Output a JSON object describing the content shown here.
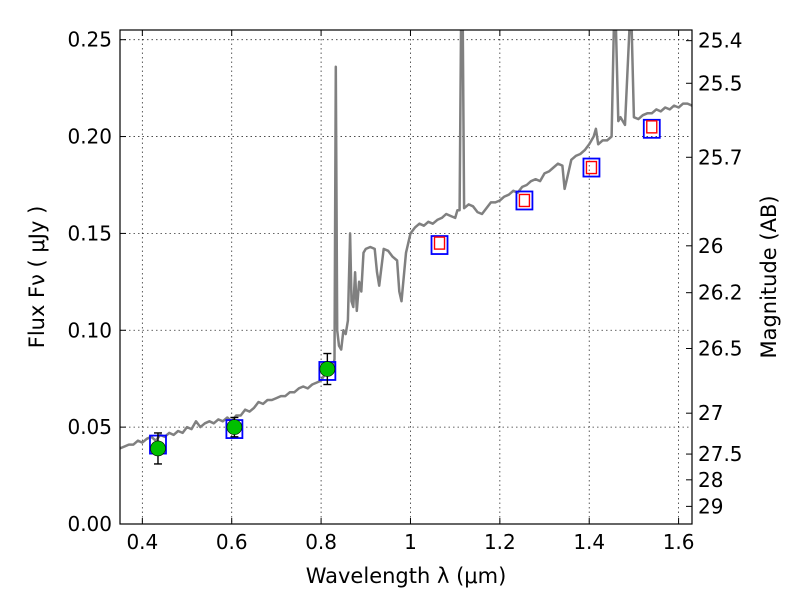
{
  "chart_data": {
    "type": "line",
    "title": "",
    "xlabel": "Wavelength  λ (μm)",
    "ylabel": "Flux  Fν  ( μJy )",
    "ylabel2": "Magnitude (AB)",
    "xlim": [
      0.35,
      1.63
    ],
    "ylim": [
      0.0,
      0.255
    ],
    "grid": true,
    "x_ticks": [
      0.4,
      0.6,
      0.8,
      1.0,
      1.2,
      1.4,
      1.6
    ],
    "x_tick_labels": [
      "0.4",
      "0.6",
      "0.8",
      "1",
      "1.2",
      "1.4",
      "1.6"
    ],
    "y_ticks": [
      0.0,
      0.05,
      0.1,
      0.15,
      0.2,
      0.25
    ],
    "y_tick_labels": [
      "0.00",
      "0.05",
      "0.10",
      "0.15",
      "0.20",
      "0.25"
    ],
    "mag_ticks": [
      {
        "label": "25.4",
        "flux": 0.2495
      },
      {
        "label": "25.5",
        "flux": 0.2275
      },
      {
        "label": "25.7",
        "flux": 0.1893
      },
      {
        "label": "26",
        "flux": 0.1436
      },
      {
        "label": "26.2",
        "flux": 0.1194
      },
      {
        "label": "26.5",
        "flux": 0.0906
      },
      {
        "label": "27",
        "flux": 0.0572
      },
      {
        "label": "27.5",
        "flux": 0.0361
      },
      {
        "label": "28",
        "flux": 0.0228
      },
      {
        "label": "29",
        "flux": 0.0091
      }
    ],
    "series": [
      {
        "kind": "spectrum",
        "color": "#808080",
        "points": [
          [
            0.35,
            0.039
          ],
          [
            0.36,
            0.04
          ],
          [
            0.37,
            0.041
          ],
          [
            0.38,
            0.041
          ],
          [
            0.39,
            0.043
          ],
          [
            0.4,
            0.042
          ],
          [
            0.41,
            0.044
          ],
          [
            0.42,
            0.045
          ],
          [
            0.43,
            0.043
          ],
          [
            0.44,
            0.046
          ],
          [
            0.45,
            0.045
          ],
          [
            0.46,
            0.047
          ],
          [
            0.47,
            0.046
          ],
          [
            0.48,
            0.048
          ],
          [
            0.49,
            0.047
          ],
          [
            0.5,
            0.05
          ],
          [
            0.51,
            0.049
          ],
          [
            0.52,
            0.053
          ],
          [
            0.53,
            0.05
          ],
          [
            0.54,
            0.052
          ],
          [
            0.55,
            0.053
          ],
          [
            0.56,
            0.052
          ],
          [
            0.57,
            0.054
          ],
          [
            0.58,
            0.053
          ],
          [
            0.59,
            0.055
          ],
          [
            0.6,
            0.053
          ],
          [
            0.61,
            0.056
          ],
          [
            0.62,
            0.056
          ],
          [
            0.63,
            0.059
          ],
          [
            0.64,
            0.058
          ],
          [
            0.65,
            0.06
          ],
          [
            0.66,
            0.063
          ],
          [
            0.67,
            0.062
          ],
          [
            0.68,
            0.064
          ],
          [
            0.69,
            0.064
          ],
          [
            0.7,
            0.065
          ],
          [
            0.71,
            0.066
          ],
          [
            0.72,
            0.066
          ],
          [
            0.73,
            0.068
          ],
          [
            0.74,
            0.068
          ],
          [
            0.75,
            0.07
          ],
          [
            0.76,
            0.071
          ],
          [
            0.77,
            0.07
          ],
          [
            0.78,
            0.072
          ],
          [
            0.79,
            0.073
          ],
          [
            0.8,
            0.074
          ],
          [
            0.81,
            0.078
          ],
          [
            0.82,
            0.082
          ],
          [
            0.825,
            0.08
          ],
          [
            0.83,
            0.085
          ],
          [
            0.833,
            0.236
          ],
          [
            0.836,
            0.1
          ],
          [
            0.84,
            0.092
          ],
          [
            0.845,
            0.09
          ],
          [
            0.85,
            0.1
          ],
          [
            0.855,
            0.098
          ],
          [
            0.86,
            0.105
          ],
          [
            0.865,
            0.15
          ],
          [
            0.868,
            0.115
          ],
          [
            0.872,
            0.112
          ],
          [
            0.876,
            0.13
          ],
          [
            0.88,
            0.11
          ],
          [
            0.885,
            0.125
          ],
          [
            0.89,
            0.12
          ],
          [
            0.895,
            0.14
          ],
          [
            0.9,
            0.142
          ],
          [
            0.91,
            0.143
          ],
          [
            0.92,
            0.142
          ],
          [
            0.925,
            0.13
          ],
          [
            0.93,
            0.123
          ],
          [
            0.94,
            0.142
          ],
          [
            0.95,
            0.141
          ],
          [
            0.96,
            0.138
          ],
          [
            0.97,
            0.136
          ],
          [
            0.975,
            0.12
          ],
          [
            0.98,
            0.115
          ],
          [
            0.99,
            0.14
          ],
          [
            1.0,
            0.15
          ],
          [
            1.01,
            0.153
          ],
          [
            1.02,
            0.155
          ],
          [
            1.03,
            0.154
          ],
          [
            1.04,
            0.156
          ],
          [
            1.05,
            0.155
          ],
          [
            1.06,
            0.157
          ],
          [
            1.07,
            0.158
          ],
          [
            1.08,
            0.16
          ],
          [
            1.09,
            0.159
          ],
          [
            1.1,
            0.158
          ],
          [
            1.105,
            0.162
          ],
          [
            1.11,
            0.162
          ],
          [
            1.113,
            0.255
          ],
          [
            1.117,
            0.255
          ],
          [
            1.12,
            0.163
          ],
          [
            1.13,
            0.165
          ],
          [
            1.14,
            0.164
          ],
          [
            1.15,
            0.161
          ],
          [
            1.16,
            0.16
          ],
          [
            1.17,
            0.163
          ],
          [
            1.18,
            0.166
          ],
          [
            1.19,
            0.166
          ],
          [
            1.2,
            0.167
          ],
          [
            1.21,
            0.169
          ],
          [
            1.22,
            0.17
          ],
          [
            1.23,
            0.172
          ],
          [
            1.24,
            0.171
          ],
          [
            1.25,
            0.174
          ],
          [
            1.26,
            0.175
          ],
          [
            1.27,
            0.177
          ],
          [
            1.28,
            0.178
          ],
          [
            1.29,
            0.177
          ],
          [
            1.3,
            0.181
          ],
          [
            1.31,
            0.182
          ],
          [
            1.32,
            0.184
          ],
          [
            1.33,
            0.186
          ],
          [
            1.34,
            0.185
          ],
          [
            1.345,
            0.173
          ],
          [
            1.35,
            0.178
          ],
          [
            1.36,
            0.188
          ],
          [
            1.37,
            0.19
          ],
          [
            1.38,
            0.191
          ],
          [
            1.39,
            0.193
          ],
          [
            1.4,
            0.196
          ],
          [
            1.41,
            0.2
          ],
          [
            1.415,
            0.204
          ],
          [
            1.42,
            0.196
          ],
          [
            1.43,
            0.198
          ],
          [
            1.44,
            0.198
          ],
          [
            1.45,
            0.2
          ],
          [
            1.455,
            0.255
          ],
          [
            1.46,
            0.255
          ],
          [
            1.465,
            0.208
          ],
          [
            1.47,
            0.21
          ],
          [
            1.48,
            0.206
          ],
          [
            1.49,
            0.255
          ],
          [
            1.495,
            0.255
          ],
          [
            1.5,
            0.21
          ],
          [
            1.51,
            0.209
          ],
          [
            1.52,
            0.211
          ],
          [
            1.53,
            0.212
          ],
          [
            1.54,
            0.212
          ],
          [
            1.55,
            0.214
          ],
          [
            1.56,
            0.213
          ],
          [
            1.57,
            0.215
          ],
          [
            1.58,
            0.214
          ],
          [
            1.59,
            0.216
          ],
          [
            1.6,
            0.215
          ],
          [
            1.61,
            0.217
          ],
          [
            1.62,
            0.217
          ],
          [
            1.63,
            0.216
          ]
        ]
      },
      {
        "kind": "observed",
        "marker": "circle",
        "color": "#00c000",
        "points": [
          {
            "x": 0.435,
            "y": 0.039,
            "yerr": 0.008
          },
          {
            "x": 0.606,
            "y": 0.05,
            "yerr": 0.005
          },
          {
            "x": 0.814,
            "y": 0.08,
            "yerr": 0.008
          }
        ]
      },
      {
        "kind": "model-photometry",
        "marker": "square",
        "color": "#0000ff",
        "points": [
          {
            "x": 0.435,
            "y": 0.041
          },
          {
            "x": 0.606,
            "y": 0.049
          },
          {
            "x": 0.814,
            "y": 0.079
          },
          {
            "x": 1.065,
            "y": 0.144
          },
          {
            "x": 1.255,
            "y": 0.167
          },
          {
            "x": 1.405,
            "y": 0.184
          },
          {
            "x": 1.54,
            "y": 0.204
          }
        ]
      },
      {
        "kind": "upper-points",
        "marker": "square",
        "color": "#ff0000",
        "points": [
          {
            "x": 1.065,
            "y": 0.145
          },
          {
            "x": 1.255,
            "y": 0.167
          },
          {
            "x": 1.405,
            "y": 0.184
          },
          {
            "x": 1.54,
            "y": 0.205
          }
        ]
      }
    ]
  }
}
